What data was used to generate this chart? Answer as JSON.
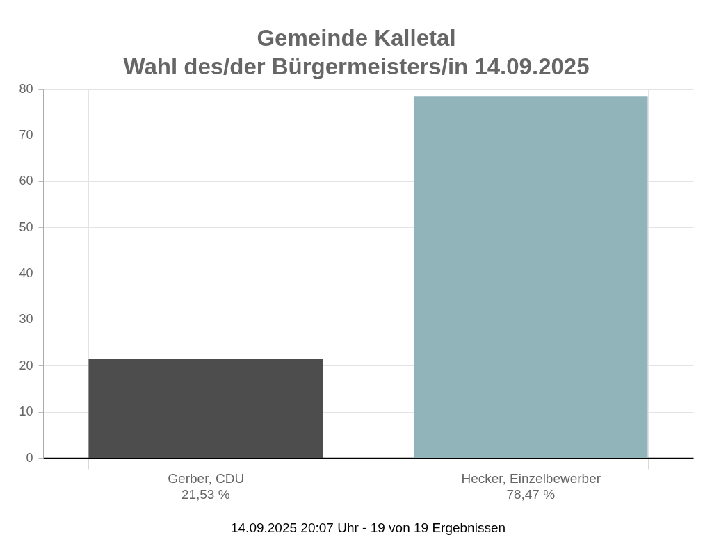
{
  "chart_data": {
    "type": "bar",
    "title": "Gemeinde Kalletal",
    "subtitle": "Wahl des/der Bürgermeisters/in 14.09.2025",
    "categories": [
      "Gerber, CDU",
      "Hecker, Einzelbewerber"
    ],
    "values": [
      21.53,
      78.47
    ],
    "colors": [
      "#4d4d4d",
      "#90b4ba"
    ],
    "value_labels": [
      "21,53 %",
      "78,47 %"
    ],
    "ylim": [
      0,
      80
    ],
    "yticks": [
      0,
      10,
      20,
      30,
      40,
      50,
      60,
      70,
      80
    ],
    "grid": true,
    "annotations": [
      "14.09.2025 20:07 Uhr - 19 von 19 Ergebnissen"
    ]
  }
}
